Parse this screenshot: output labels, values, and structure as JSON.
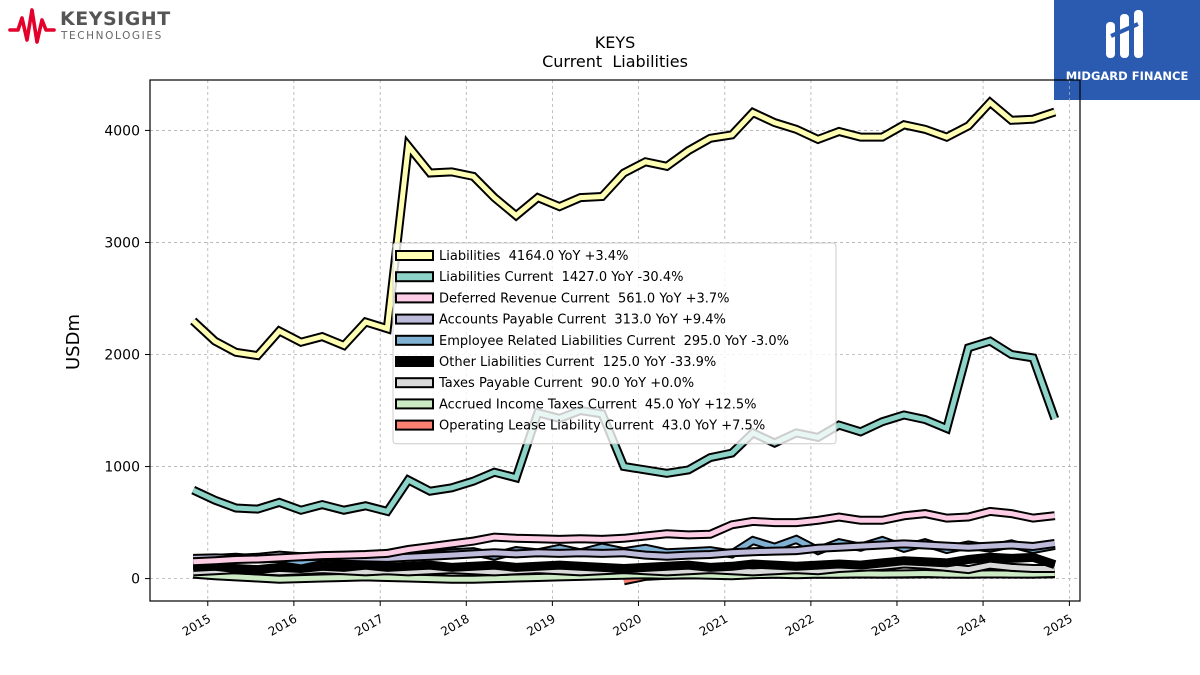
{
  "logos": {
    "left": {
      "name": "KEYSIGHT",
      "sub": "TECHNOLOGIES",
      "color": "#e4002b"
    },
    "right": {
      "name": "MIDGARD FINANCE",
      "color": "#2a5bb0"
    }
  },
  "chart_data": {
    "type": "line",
    "title": "KEYS",
    "subtitle": "Current  Liabilities",
    "xlabel": "",
    "ylabel": "USDm",
    "xlim": [
      "2014-05-01",
      "2025-02-15"
    ],
    "ylim": [
      -200,
      4450
    ],
    "yticks": [
      0,
      1000,
      2000,
      3000,
      4000
    ],
    "xticks": [
      "2015",
      "2016",
      "2017",
      "2018",
      "2019",
      "2020",
      "2021",
      "2022",
      "2023",
      "2024",
      "2025"
    ],
    "grid": true,
    "legend_position": "center",
    "x": [
      "2014-10-31",
      "2015-01-31",
      "2015-04-30",
      "2015-07-31",
      "2015-10-31",
      "2016-01-31",
      "2016-04-30",
      "2016-07-31",
      "2016-10-31",
      "2017-01-31",
      "2017-04-30",
      "2017-07-31",
      "2017-10-31",
      "2018-01-31",
      "2018-04-30",
      "2018-07-31",
      "2018-10-31",
      "2019-01-31",
      "2019-04-30",
      "2019-07-31",
      "2019-10-31",
      "2020-01-31",
      "2020-04-30",
      "2020-07-31",
      "2020-10-31",
      "2021-01-31",
      "2021-04-30",
      "2021-07-31",
      "2021-10-31",
      "2022-01-31",
      "2022-04-30",
      "2022-07-31",
      "2022-10-31",
      "2023-01-31",
      "2023-04-30",
      "2023-07-31",
      "2023-10-31",
      "2024-01-31",
      "2024-04-30",
      "2024-07-31",
      "2024-10-31"
    ],
    "series": [
      {
        "name": "Liabilities",
        "legend": "Liabilities  4164.0 YoY +3.4%",
        "color": "#ffffb3",
        "values": [
          2300,
          2120,
          2020,
          1990,
          2210,
          2110,
          2160,
          2080,
          2290,
          2230,
          3860,
          3620,
          3630,
          3590,
          3400,
          3240,
          3400,
          3320,
          3400,
          3410,
          3620,
          3720,
          3680,
          3820,
          3930,
          3960,
          4160,
          4070,
          4010,
          3920,
          3990,
          3940,
          3940,
          4050,
          4010,
          3940,
          4040,
          4250,
          4090,
          4100,
          4164
        ]
      },
      {
        "name": "Liabilities Current",
        "legend": "Liabilities Current  1427.0 YoY -30.4%",
        "color": "#8dd3c7",
        "values": [
          790,
          700,
          630,
          620,
          680,
          610,
          660,
          610,
          650,
          600,
          880,
          780,
          810,
          870,
          950,
          900,
          1480,
          1430,
          1500,
          1470,
          1000,
          970,
          940,
          970,
          1080,
          1120,
          1300,
          1210,
          1300,
          1260,
          1370,
          1310,
          1400,
          1460,
          1420,
          1340,
          2060,
          2120,
          2000,
          1970,
          1427
        ]
      },
      {
        "name": "Deferred Revenue Current",
        "legend": "Deferred Revenue Current  561.0 YoY +3.7%",
        "color": "#fccde5",
        "values": [
          150,
          160,
          170,
          175,
          185,
          195,
          205,
          210,
          215,
          225,
          260,
          285,
          310,
          335,
          370,
          360,
          355,
          350,
          355,
          350,
          360,
          380,
          400,
          390,
          395,
          480,
          510,
          500,
          500,
          520,
          550,
          520,
          520,
          560,
          580,
          540,
          550,
          600,
          580,
          540,
          561
        ]
      },
      {
        "name": "Accounts Payable Current",
        "legend": "Accounts Payable Current  313.0 YoY +9.4%",
        "color": "#bebada",
        "values": [
          180,
          185,
          180,
          190,
          210,
          195,
          200,
          190,
          185,
          180,
          190,
          200,
          210,
          220,
          230,
          220,
          230,
          225,
          230,
          225,
          230,
          210,
          200,
          210,
          215,
          230,
          240,
          245,
          250,
          270,
          280,
          290,
          300,
          310,
          300,
          290,
          280,
          290,
          300,
          286,
          313
        ]
      },
      {
        "name": "Employee Related Liabilities Current",
        "legend": "Employee Related Liabilities Current  295.0 YoY -3.0%",
        "color": "#80b1d3",
        "values": [
          170,
          180,
          190,
          175,
          180,
          150,
          190,
          175,
          200,
          170,
          220,
          210,
          230,
          240,
          200,
          250,
          230,
          270,
          230,
          280,
          240,
          270,
          230,
          240,
          250,
          220,
          340,
          280,
          350,
          250,
          320,
          280,
          340,
          270,
          320,
          260,
          300,
          270,
          310,
          260,
          295
        ]
      },
      {
        "name": "Other Liabilities Current",
        "legend": "Other Liabilities Current  125.0 YoY -33.9%",
        "color": "#000000",
        "values": [
          100,
          110,
          90,
          80,
          100,
          90,
          110,
          100,
          120,
          100,
          110,
          120,
          100,
          110,
          120,
          100,
          110,
          120,
          110,
          100,
          90,
          100,
          110,
          120,
          100,
          110,
          130,
          120,
          110,
          120,
          130,
          120,
          140,
          160,
          150,
          140,
          170,
          190,
          180,
          189,
          125
        ]
      },
      {
        "name": "Taxes Payable Current",
        "legend": "Taxes Payable Current  90.0 YoY +0.0%",
        "color": "#d9d9d9",
        "values": [
          60,
          70,
          80,
          70,
          60,
          70,
          80,
          70,
          60,
          70,
          60,
          70,
          80,
          70,
          60,
          70,
          80,
          70,
          60,
          70,
          80,
          70,
          60,
          70,
          80,
          70,
          60,
          70,
          80,
          70,
          90,
          100,
          110,
          130,
          120,
          100,
          80,
          120,
          100,
          90,
          90
        ]
      },
      {
        "name": "Accrued Income Taxes Current",
        "legend": "Accrued Income Taxes Current  45.0 YoY +12.5%",
        "color": "#ccebc5",
        "values": [
          40,
          25,
          15,
          5,
          -5,
          0,
          5,
          10,
          15,
          10,
          5,
          0,
          -5,
          -5,
          0,
          5,
          10,
          15,
          20,
          25,
          30,
          35,
          30,
          35,
          30,
          25,
          35,
          40,
          35,
          40,
          38,
          42,
          40,
          42,
          45,
          40,
          38,
          42,
          40,
          40,
          45
        ]
      },
      {
        "name": "Operating Lease Liability Current",
        "legend": "Operating Lease Liability Current  43.0 YoY +7.5%",
        "color": "#fb8072",
        "values": [
          null,
          null,
          null,
          null,
          null,
          null,
          null,
          null,
          null,
          null,
          null,
          null,
          null,
          null,
          null,
          null,
          null,
          null,
          null,
          null,
          -20,
          20,
          30,
          32,
          35,
          38,
          38,
          40,
          40,
          40,
          40,
          40,
          40,
          40,
          42,
          42,
          40,
          42,
          42,
          40,
          43
        ]
      }
    ]
  }
}
